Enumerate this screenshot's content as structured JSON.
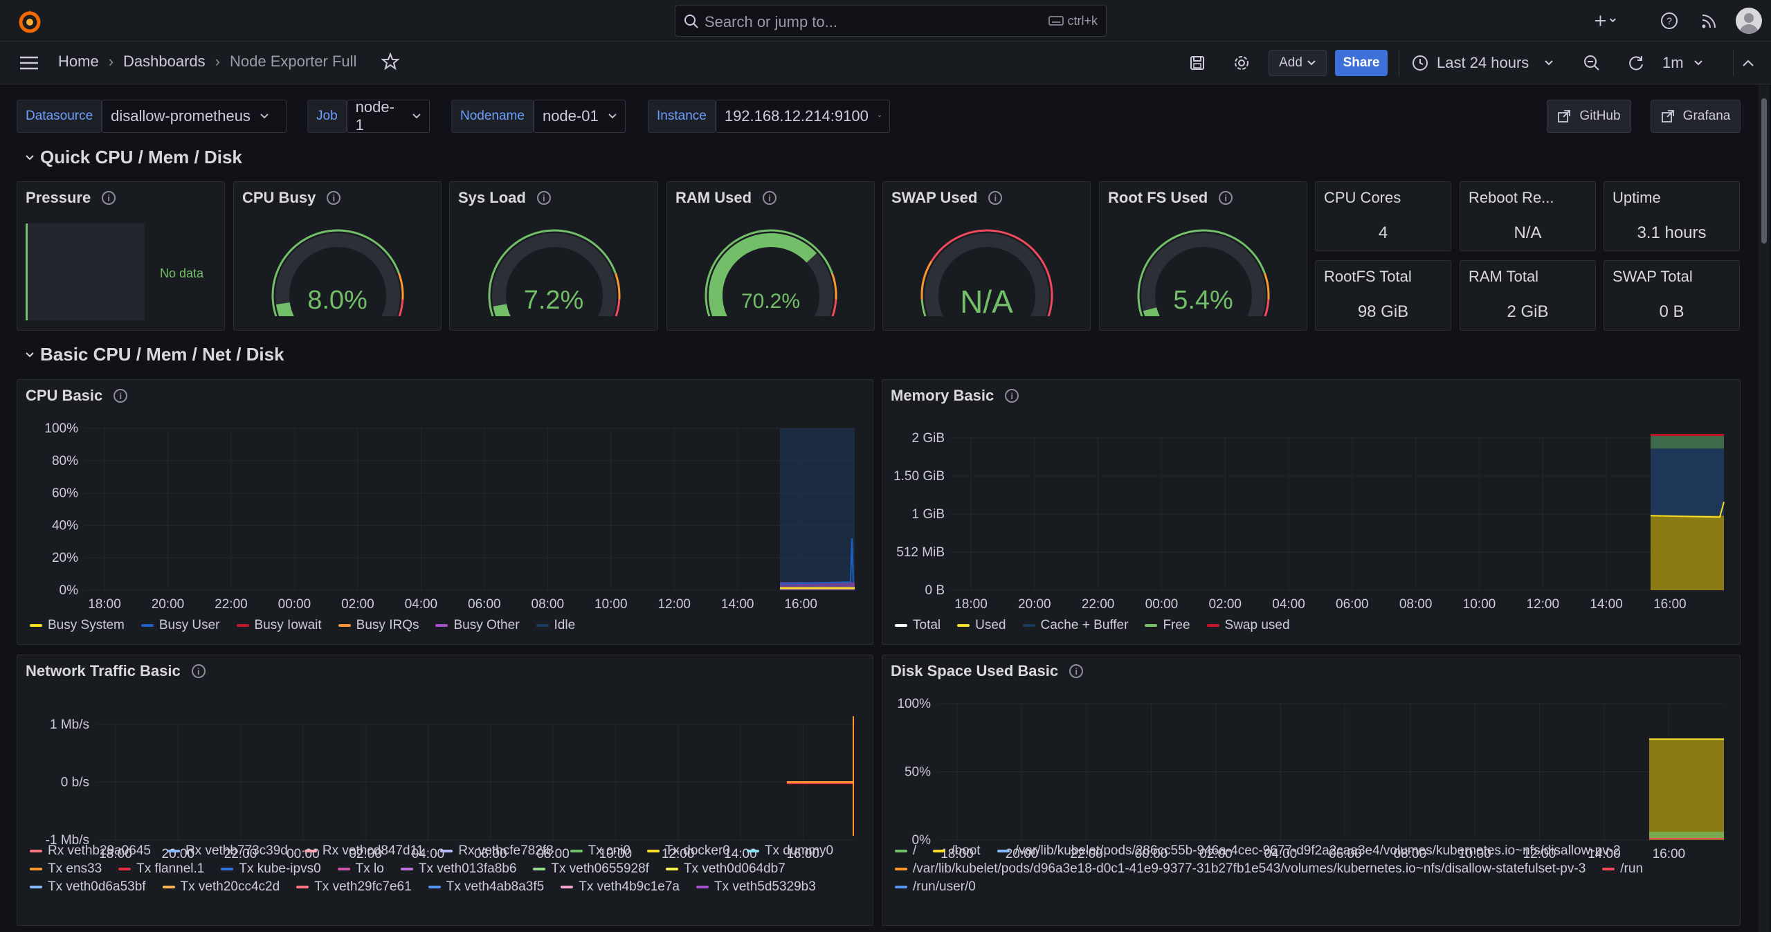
{
  "search": {
    "placeholder": "Search or jump to...",
    "shortcut": "ctrl+k"
  },
  "breadcrumb": {
    "home": "Home",
    "dashboards": "Dashboards",
    "current": "Node Exporter Full"
  },
  "toolbar": {
    "add_label": "Add",
    "share_label": "Share",
    "time_range": "Last 24 hours",
    "refresh": "1m"
  },
  "variables": [
    {
      "label": "Datasource",
      "value": "disallow-prometheus"
    },
    {
      "label": "Job",
      "value": "node-1"
    },
    {
      "label": "Nodename",
      "value": "node-01"
    },
    {
      "label": "Instance",
      "value": "192.168.12.214:9100"
    }
  ],
  "links": {
    "github": "GitHub",
    "grafana": "Grafana"
  },
  "rows": {
    "quick": "Quick CPU / Mem / Disk",
    "basic": "Basic CPU / Mem / Net / Disk"
  },
  "quick_panels": {
    "pressure": {
      "title": "Pressure",
      "value": "No data"
    },
    "cpu_busy": {
      "title": "CPU Busy",
      "value": "8.0%",
      "fraction": 0.08
    },
    "sys_load": {
      "title": "Sys Load",
      "value": "7.2%",
      "fraction": 0.072
    },
    "ram_used": {
      "title": "RAM Used",
      "value": "70.2%",
      "fraction": 0.702
    },
    "swap_used": {
      "title": "SWAP Used",
      "value": "N/A",
      "fraction": 0
    },
    "root_fs": {
      "title": "Root FS Used",
      "value": "5.4%",
      "fraction": 0.054
    },
    "cpu_cores": {
      "title": "CPU Cores",
      "value": "4"
    },
    "reboot": {
      "title": "Reboot Re...",
      "value": "N/A"
    },
    "uptime": {
      "title": "Uptime",
      "value": "3.1 hours"
    },
    "rootfs_total": {
      "title": "RootFS Total",
      "value": "98 GiB"
    },
    "ram_total": {
      "title": "RAM Total",
      "value": "2 GiB"
    },
    "swap_total": {
      "title": "SWAP Total",
      "value": "0 B"
    }
  },
  "colors": {
    "green": "#73bf69",
    "red": "#f2495c",
    "orange": "#ff9830",
    "blue": "#5794f2",
    "yellow": "#fade2a"
  },
  "chart_data": [
    {
      "type": "area",
      "title": "CPU Basic",
      "x_ticks": [
        "18:00",
        "20:00",
        "22:00",
        "00:00",
        "02:00",
        "04:00",
        "06:00",
        "08:00",
        "10:00",
        "12:00",
        "14:00",
        "16:00"
      ],
      "y_ticks": [
        "100%",
        "80%",
        "60%",
        "40%",
        "20%",
        "0%"
      ],
      "ylim": [
        0,
        100
      ],
      "series": [
        {
          "name": "Busy System",
          "color": "#fade2a"
        },
        {
          "name": "Busy User",
          "color": "#1f60c4"
        },
        {
          "name": "Busy Iowait",
          "color": "#c4162a"
        },
        {
          "name": "Busy IRQs",
          "color": "#ff9830"
        },
        {
          "name": "Busy Other",
          "color": "#a352cc"
        },
        {
          "name": "Idle",
          "color": "#1f3a5e"
        }
      ]
    },
    {
      "type": "area",
      "title": "Memory Basic",
      "x_ticks": [
        "18:00",
        "20:00",
        "22:00",
        "00:00",
        "02:00",
        "04:00",
        "06:00",
        "08:00",
        "10:00",
        "12:00",
        "14:00",
        "16:00"
      ],
      "y_ticks": [
        "2 GiB",
        "1.50 GiB",
        "1 GiB",
        "512 MiB",
        "0 B"
      ],
      "series": [
        {
          "name": "Total",
          "color": "#ffffff"
        },
        {
          "name": "Used",
          "color": "#fade2a"
        },
        {
          "name": "Cache + Buffer",
          "color": "#1f3a5e"
        },
        {
          "name": "Free",
          "color": "#73bf69"
        },
        {
          "name": "Swap used",
          "color": "#c4162a"
        }
      ]
    },
    {
      "type": "line",
      "title": "Network Traffic Basic",
      "x_ticks": [
        "18:00",
        "20:00",
        "22:00",
        "00:00",
        "02:00",
        "04:00",
        "06:00",
        "08:00",
        "10:00",
        "12:00",
        "14:00",
        "16:00"
      ],
      "y_ticks": [
        "1 Mb/s",
        "0 b/s",
        "-1 Mb/s"
      ],
      "series": [
        {
          "name": "Rx vethb29a0645",
          "color": "#ff7383"
        },
        {
          "name": "Rx vethb773c39d",
          "color": "#8ab8ff"
        },
        {
          "name": "Rx vethcd847d11",
          "color": "#ffa6b0"
        },
        {
          "name": "Rx vethcfe782f8",
          "color": "#b8b8ff"
        },
        {
          "name": "Tx cni0",
          "color": "#73bf69"
        },
        {
          "name": "Tx docker0",
          "color": "#fade2a"
        },
        {
          "name": "Tx dummy0",
          "color": "#8ae0f0"
        },
        {
          "name": "Tx ens33",
          "color": "#ff9830"
        },
        {
          "name": "Tx flannel.1",
          "color": "#e02f44"
        },
        {
          "name": "Tx kube-ipvs0",
          "color": "#3274d9"
        },
        {
          "name": "Tx lo",
          "color": "#ca58a7"
        },
        {
          "name": "Tx veth013fa8b6",
          "color": "#b877d9"
        },
        {
          "name": "Tx veth0655928f",
          "color": "#96d98d"
        },
        {
          "name": "Tx veth0d064db7",
          "color": "#ffee52"
        },
        {
          "name": "Tx veth0d6a53bf",
          "color": "#8ab8ff"
        },
        {
          "name": "Tx veth20cc4c2d",
          "color": "#ffb357"
        },
        {
          "name": "Tx veth29fc7e61",
          "color": "#ff7383"
        },
        {
          "name": "Tx veth4ab8a3f5",
          "color": "#5794f2"
        },
        {
          "name": "Tx veth4b9c1e7a",
          "color": "#f4a3d0"
        },
        {
          "name": "Tx veth5d5329b3",
          "color": "#a352cc"
        }
      ]
    },
    {
      "type": "area",
      "title": "Disk Space Used Basic",
      "x_ticks": [
        "18:00",
        "20:00",
        "22:00",
        "00:00",
        "02:00",
        "04:00",
        "06:00",
        "08:00",
        "10:00",
        "12:00",
        "14:00",
        "16:00"
      ],
      "y_ticks": [
        "100%",
        "50%",
        "0%"
      ],
      "ylim": [
        0,
        100
      ],
      "series": [
        {
          "name": "/",
          "color": "#73bf69"
        },
        {
          "name": "/boot",
          "color": "#fade2a"
        },
        {
          "name": "/var/lib/kubelet/pods/286cc55b-946a-4cec-9677-d9f2a2caa3e4/volumes/kubernetes.io~nfs/disallow-pv-2",
          "color": "#8ab8ff"
        },
        {
          "name": "/var/lib/kubelet/pods/d96a3e18-d0c1-41e9-9377-31b27fb1e543/volumes/kubernetes.io~nfs/disallow-statefulset-pv-3",
          "color": "#ff9830"
        },
        {
          "name": "/run",
          "color": "#f2495c"
        },
        {
          "name": "/run/user/0",
          "color": "#5794f2"
        }
      ]
    }
  ]
}
